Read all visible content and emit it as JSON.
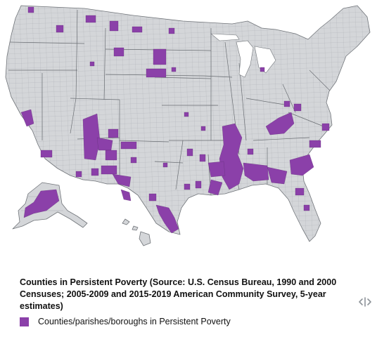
{
  "map": {
    "caption": "Counties in Persistent Poverty (Source: U.S. Census Bureau, 1990 and 2000 Censuses; 2005-2009 and 2015-2019 American Community Survey, 5-year estimates)",
    "legend": {
      "label": "Counties/parishes/boroughs in Persistent Poverty",
      "color": "#8b40a9"
    },
    "colors": {
      "land": "#d4d6d9",
      "highlight": "#8b40a9"
    },
    "icons": {
      "collapse_control": "split-arrows-icon"
    }
  }
}
